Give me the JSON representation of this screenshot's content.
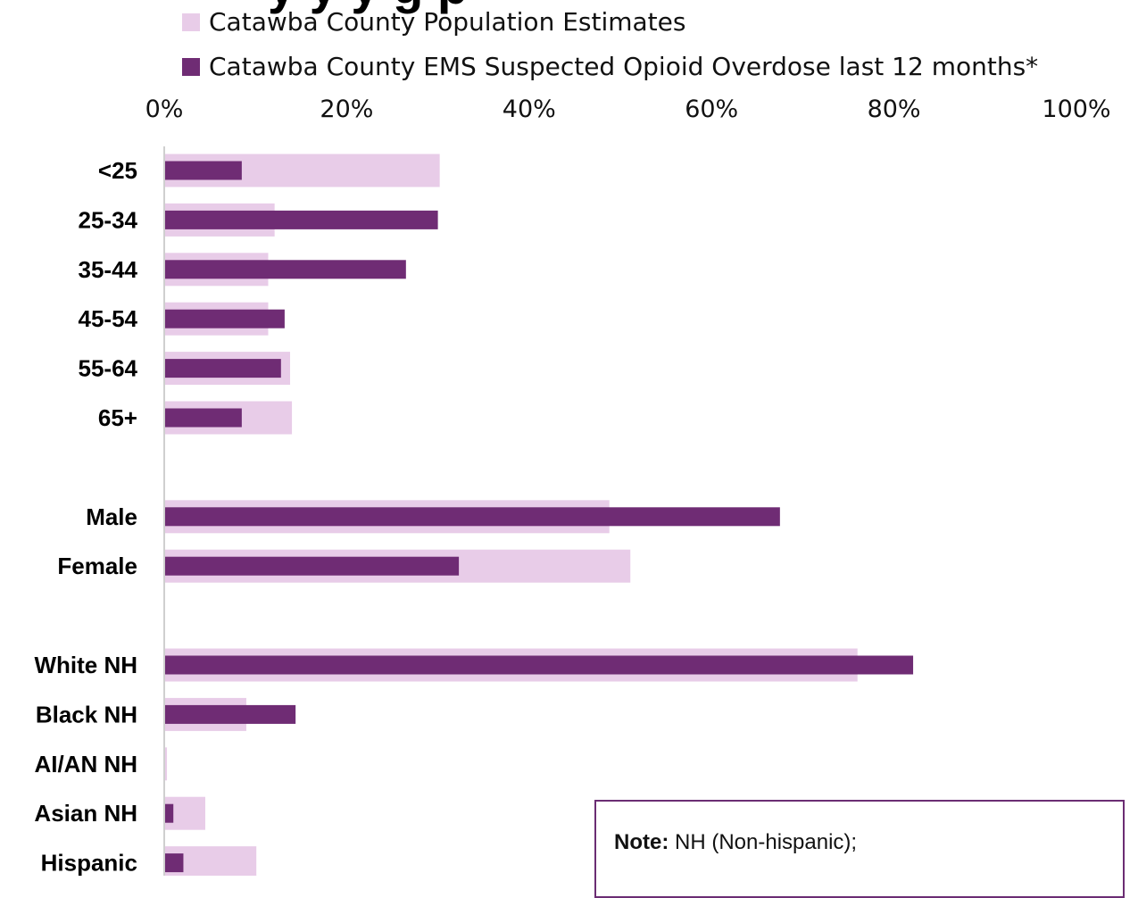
{
  "chart_data": {
    "type": "bar",
    "orientation": "horizontal",
    "title_fragment": "y  y    y  g    p",
    "categories": [
      "<25",
      "25-34",
      "35-44",
      "45-54",
      "55-64",
      "65+",
      "Male",
      "Female",
      "White NH",
      "Black NH",
      "AI/AN NH",
      "Asian NH",
      "Hispanic"
    ],
    "category_groups": [
      [
        "<25",
        "25-34",
        "35-44",
        "45-54",
        "55-64",
        "65+"
      ],
      [
        "Male",
        "Female"
      ],
      [
        "White NH",
        "Black NH",
        "AI/AN NH",
        "Asian NH",
        "Hispanic"
      ]
    ],
    "series": [
      {
        "name": "Catawba County Population Estimates",
        "color": "#e8cce8",
        "values": [
          30.2,
          12.1,
          11.4,
          11.4,
          13.8,
          14.0,
          48.8,
          51.1,
          76.0,
          9.0,
          0.3,
          4.5,
          10.1
        ]
      },
      {
        "name": "Catawba County EMS Suspected Opioid Overdose last 12 months*",
        "color": "#6f2c74",
        "values": [
          8.5,
          30.0,
          26.5,
          13.2,
          12.8,
          8.5,
          67.5,
          32.3,
          82.1,
          14.4,
          0.0,
          1.0,
          2.1
        ]
      }
    ],
    "xlim": [
      0,
      100
    ],
    "xticks": [
      "0%",
      "20%",
      "40%",
      "60%",
      "80%",
      "100%"
    ],
    "xlabel": "",
    "ylabel": "",
    "legend_position": "top",
    "grid": false
  },
  "note": {
    "label": "Note:",
    "text": "NH (Non-hispanic);"
  }
}
